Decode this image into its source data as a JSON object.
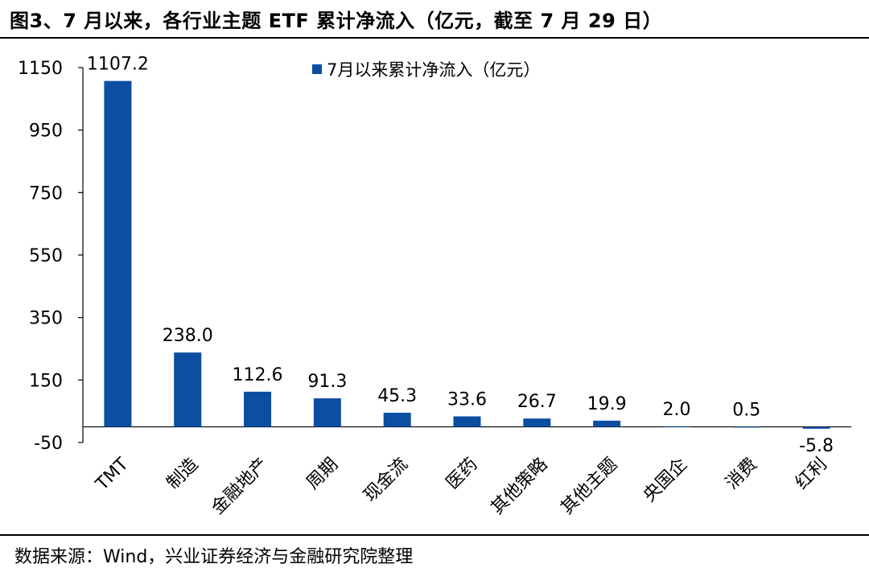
{
  "title": "图3、7 月以来，各行业主题 ETF 累计净流入（亿元，截至 7 月 29 日）",
  "source": "数据来源：Wind，兴业证券经济与金融研究院整理",
  "chart_data": {
    "type": "bar",
    "categories": [
      "TMT",
      "制造",
      "金融地产",
      "周期",
      "现金流",
      "医药",
      "其他策略",
      "其他主题",
      "央国企",
      "消费",
      "红利"
    ],
    "series": [
      {
        "name": "7月以来累计净流入（亿元）",
        "values": [
          1107.2,
          238.0,
          112.6,
          91.3,
          45.3,
          33.6,
          26.7,
          19.9,
          2.0,
          0.5,
          -5.8
        ],
        "data_labels": [
          "1107.2",
          "238.0",
          "112.6",
          "91.3",
          "45.3",
          "33.6",
          "26.7",
          "19.9",
          "2.0",
          "0.5",
          "-5.8"
        ]
      }
    ],
    "ylim": [
      -50,
      1150
    ],
    "yticks": [
      -50,
      150,
      350,
      550,
      750,
      950,
      1150
    ],
    "ytick_labels": [
      "-50",
      "150",
      "350",
      "550",
      "750",
      "950",
      "1150"
    ],
    "grid": false,
    "legend_position": "top-center",
    "bar_color": "#0b4ea2",
    "xlabel": "",
    "ylabel": ""
  }
}
